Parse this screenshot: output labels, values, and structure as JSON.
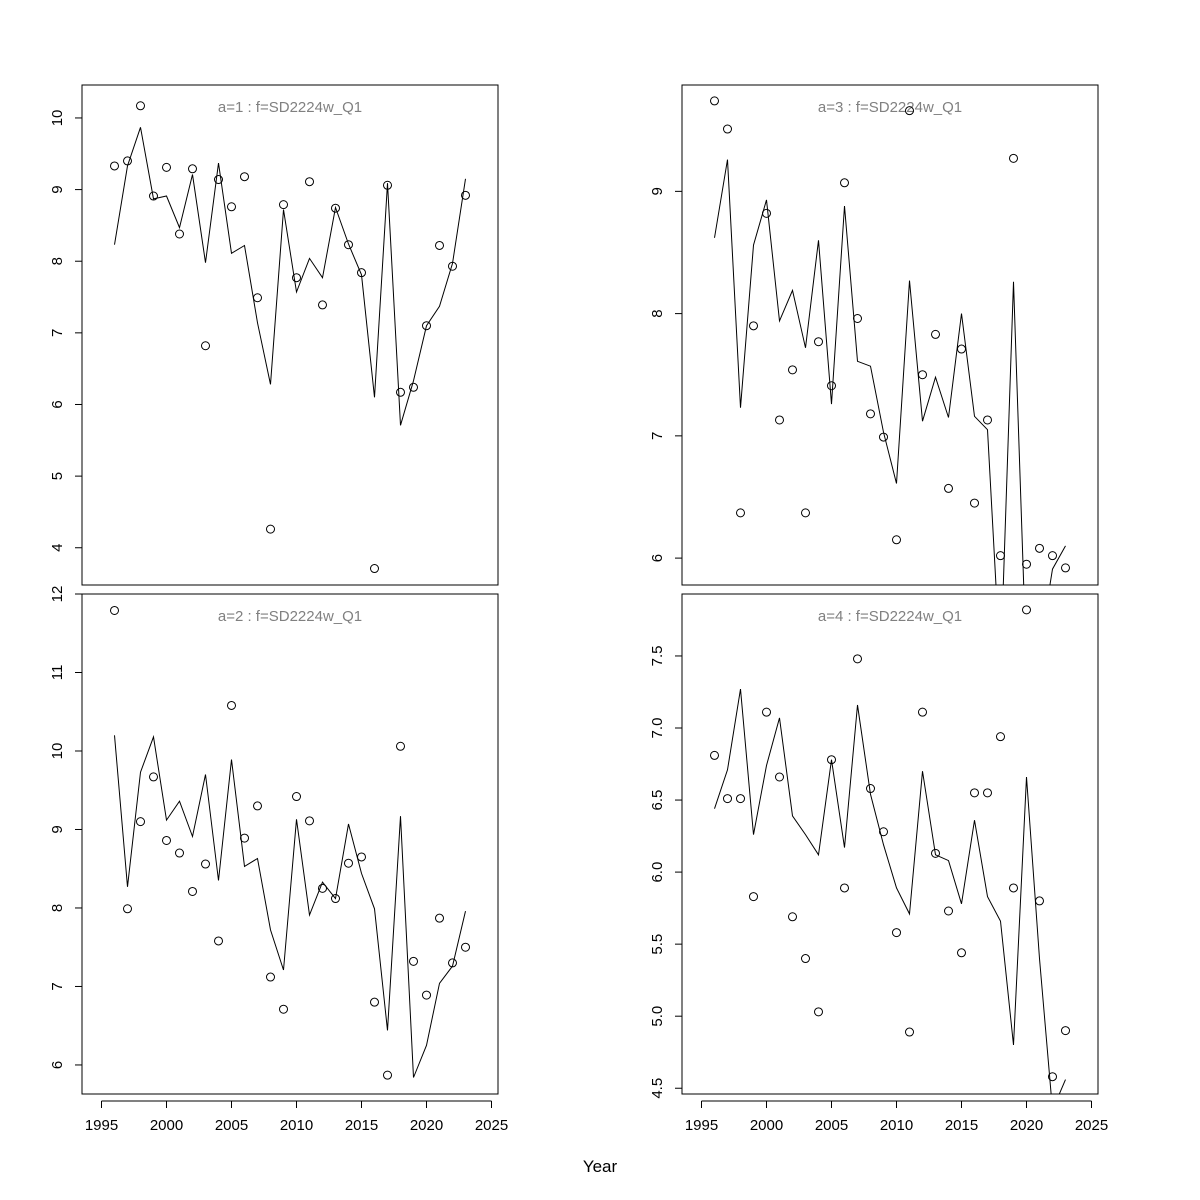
{
  "figure": {
    "xlabel": "Year"
  },
  "chart_data": [
    {
      "type": "scatter",
      "title": "a=1  :  f=SD2224w_Q1",
      "xlim": [
        1993.5,
        2025.5
      ],
      "ylim": [
        3.48,
        10.46
      ],
      "xticks": [
        1995,
        2000,
        2005,
        2010,
        2015,
        2020,
        2025
      ],
      "yticks": [
        4,
        5,
        6,
        7,
        8,
        9,
        10
      ],
      "x": [
        1996,
        1997,
        1998,
        1999,
        2000,
        2001,
        2002,
        2003,
        2004,
        2005,
        2006,
        2007,
        2008,
        2009,
        2010,
        2011,
        2012,
        2013,
        2014,
        2015,
        2016,
        2017,
        2018,
        2019,
        2020,
        2021,
        2022,
        2023
      ],
      "observed": [
        9.33,
        9.4,
        10.17,
        8.91,
        9.31,
        8.38,
        9.29,
        6.82,
        9.14,
        8.76,
        9.18,
        7.49,
        4.26,
        8.79,
        7.77,
        9.11,
        7.39,
        8.74,
        8.23,
        7.84,
        3.71,
        9.06,
        6.17,
        6.24,
        7.1,
        8.22,
        7.93,
        8.92
      ],
      "fitted": [
        8.23,
        9.33,
        9.87,
        8.87,
        8.91,
        8.47,
        9.21,
        7.98,
        9.37,
        8.11,
        8.22,
        7.14,
        6.28,
        8.72,
        7.57,
        8.04,
        7.77,
        8.75,
        8.24,
        7.81,
        6.1,
        9.09,
        5.71,
        6.33,
        7.1,
        7.37,
        7.97,
        9.15
      ]
    },
    {
      "type": "scatter",
      "title": "a=3  :  f=SD2224w_Q1",
      "xlim": [
        1993.5,
        2025.5
      ],
      "ylim": [
        5.78,
        9.87
      ],
      "xticks": [
        1995,
        2000,
        2005,
        2010,
        2015,
        2020,
        2025
      ],
      "yticks": [
        6,
        7,
        8,
        9
      ],
      "x": [
        1996,
        1997,
        1998,
        1999,
        2000,
        2001,
        2002,
        2003,
        2004,
        2005,
        2006,
        2007,
        2008,
        2009,
        2010,
        2011,
        2012,
        2013,
        2014,
        2015,
        2016,
        2017,
        2018,
        2019,
        2020,
        2021,
        2022,
        2023
      ],
      "observed": [
        9.74,
        9.51,
        6.37,
        7.9,
        8.82,
        7.13,
        7.54,
        6.37,
        7.77,
        7.41,
        9.07,
        7.96,
        7.18,
        6.99,
        6.15,
        9.66,
        7.5,
        7.83,
        6.57,
        7.71,
        6.45,
        7.13,
        6.02,
        9.27,
        5.95,
        6.08,
        6.02,
        5.92
      ],
      "fitted": [
        8.62,
        9.26,
        7.23,
        8.56,
        8.93,
        7.94,
        8.19,
        7.72,
        8.6,
        7.26,
        8.88,
        7.61,
        7.57,
        7.03,
        6.61,
        8.27,
        7.12,
        7.48,
        7.15,
        8.0,
        7.16,
        7.05,
        5.1,
        8.26,
        5.1,
        5.25,
        5.91,
        6.1
      ]
    },
    {
      "type": "scatter",
      "title": "a=2  :  f=SD2224w_Q1",
      "xlim": [
        1993.5,
        2025.5
      ],
      "ylim": [
        5.63,
        12.0
      ],
      "xticks": [
        1995,
        2000,
        2005,
        2010,
        2015,
        2020,
        2025
      ],
      "yticks": [
        6,
        7,
        8,
        9,
        10,
        11,
        12
      ],
      "x": [
        1996,
        1997,
        1998,
        1999,
        2000,
        2001,
        2002,
        2003,
        2004,
        2005,
        2006,
        2007,
        2008,
        2009,
        2010,
        2011,
        2012,
        2013,
        2014,
        2015,
        2016,
        2017,
        2018,
        2019,
        2020,
        2021,
        2022,
        2023
      ],
      "observed": [
        11.79,
        7.99,
        9.1,
        9.67,
        8.86,
        8.7,
        8.21,
        8.56,
        7.58,
        10.58,
        8.89,
        9.3,
        7.12,
        6.71,
        9.42,
        9.11,
        8.25,
        8.12,
        8.57,
        8.65,
        6.8,
        5.87,
        10.06,
        7.32,
        6.89,
        7.87,
        7.3,
        7.5
      ],
      "fitted": [
        10.2,
        8.27,
        9.73,
        10.18,
        9.12,
        9.36,
        8.91,
        9.7,
        8.35,
        9.89,
        8.53,
        8.63,
        7.72,
        7.21,
        9.13,
        7.91,
        8.33,
        8.12,
        9.07,
        8.44,
        7.99,
        6.44,
        9.17,
        5.84,
        6.25,
        7.04,
        7.26,
        7.96
      ]
    },
    {
      "type": "scatter",
      "title": "a=4  :  f=SD2224w_Q1",
      "xlim": [
        1993.5,
        2025.5
      ],
      "ylim": [
        4.46,
        7.93
      ],
      "xticks": [
        1995,
        2000,
        2005,
        2010,
        2015,
        2020,
        2025
      ],
      "yticks": [
        4.5,
        5.0,
        5.5,
        6.0,
        6.5,
        7.0,
        7.5
      ],
      "x": [
        1996,
        1997,
        1998,
        1999,
        2000,
        2001,
        2002,
        2003,
        2004,
        2005,
        2006,
        2007,
        2008,
        2009,
        2010,
        2011,
        2012,
        2013,
        2014,
        2015,
        2016,
        2017,
        2018,
        2019,
        2020,
        2021,
        2022,
        2023
      ],
      "observed": [
        6.81,
        6.51,
        6.51,
        5.83,
        7.11,
        6.66,
        5.69,
        5.4,
        5.03,
        6.78,
        5.89,
        7.48,
        6.58,
        6.28,
        5.58,
        4.89,
        7.11,
        6.13,
        5.73,
        5.44,
        6.55,
        6.55,
        6.94,
        5.89,
        7.82,
        5.8,
        4.58,
        4.9
      ],
      "fitted": [
        6.44,
        6.71,
        7.27,
        6.26,
        6.74,
        7.07,
        6.39,
        6.26,
        6.12,
        6.78,
        6.17,
        7.16,
        6.54,
        6.19,
        5.89,
        5.71,
        6.7,
        6.12,
        6.08,
        5.78,
        6.36,
        5.83,
        5.66,
        4.8,
        6.66,
        5.4,
        4.35,
        4.56
      ]
    }
  ]
}
